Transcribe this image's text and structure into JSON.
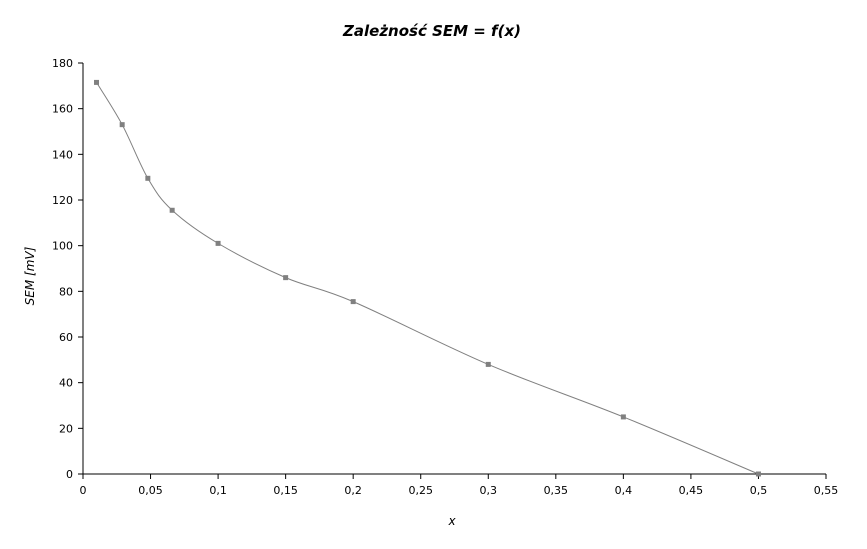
{
  "chart_data": {
    "type": "line",
    "title": "Zależność SEM = f(x)",
    "xlabel": "x",
    "ylabel": "SEM [mV]",
    "xlim": [
      0,
      0.55
    ],
    "ylim": [
      0,
      180
    ],
    "x_ticks": [
      0,
      0.05,
      0.1,
      0.15,
      0.2,
      0.25,
      0.3,
      0.35,
      0.4,
      0.45,
      0.5,
      0.55
    ],
    "x_tick_labels": [
      "0",
      "0,05",
      "0,1",
      "0,15",
      "0,2",
      "0,25",
      "0,3",
      "0,35",
      "0,4",
      "0,45",
      "0,5",
      "0,55"
    ],
    "y_ticks": [
      0,
      20,
      40,
      60,
      80,
      100,
      120,
      140,
      160,
      180
    ],
    "y_tick_labels": [
      "0",
      "20",
      "40",
      "60",
      "80",
      "100",
      "120",
      "140",
      "160",
      "180"
    ],
    "grid": false,
    "smooth": true,
    "series": [
      {
        "x": [
          0.01,
          0.029,
          0.048,
          0.066,
          0.1,
          0.15,
          0.2,
          0.3,
          0.4,
          0.5
        ],
        "y": [
          171.5,
          153,
          129.5,
          115.5,
          101,
          86,
          75.5,
          48,
          25,
          0
        ],
        "color": "#808080"
      }
    ]
  }
}
